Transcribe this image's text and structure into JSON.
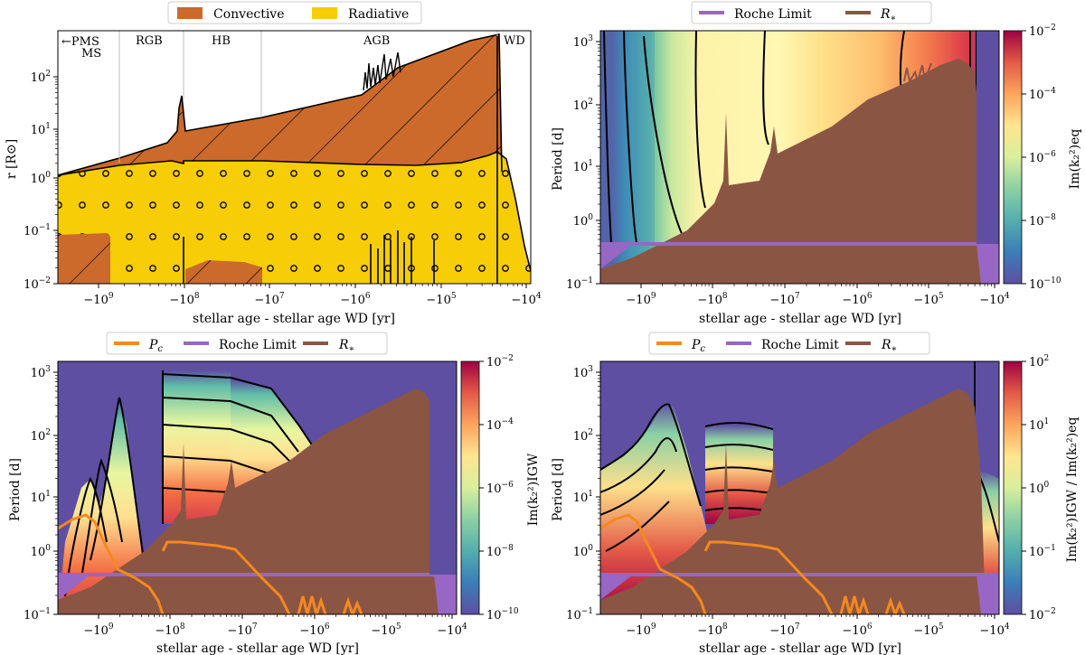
{
  "colors": {
    "convective": "#cc6a2c",
    "radiative": "#f6cd06",
    "roche": "#9866c4",
    "rstar": "#8b5544",
    "pc": "#f4891e",
    "background_low": "#5e4fa2"
  },
  "chart_data": [
    {
      "id": "panel-structure",
      "type": "area",
      "title": "",
      "xlabel": "stellar age - stellar age WD [yr]",
      "ylabel": "r [R⊙]",
      "xscale": "symlog-negative",
      "yscale": "log",
      "xticks": [
        "−10⁹",
        "−10⁸",
        "−10⁷",
        "−10⁶",
        "−10⁵",
        "−10⁴"
      ],
      "yticks": [
        "10⁻²",
        "10⁻¹",
        "10⁰",
        "10¹",
        "10²"
      ],
      "ylim": [
        0.01,
        800
      ],
      "legend": {
        "placement": "top",
        "entries": [
          "Convective",
          "Radiative"
        ]
      },
      "phase_labels": [
        "←PMS",
        "MS",
        "RGB",
        "HB",
        "AGB",
        "WD"
      ],
      "series": [
        {
          "name": "Convective",
          "hatch": "\\",
          "outer_radius": [
            [
              -3500000000.0,
              1.3
            ],
            [
              -1200000000.0,
              2.2
            ],
            [
              -100000000.0,
              2.5
            ],
            [
              -90000000.0,
              11
            ],
            [
              -1000000.0,
              60
            ],
            [
              -200000.0,
              300
            ],
            [
              -20000.0,
              450
            ],
            [
              -15000.0,
              0.5
            ]
          ]
        },
        {
          "name": "Radiative",
          "hatch": "o",
          "outer_radius": [
            [
              -3500000000.0,
              1.3
            ],
            [
              -1200000000.0,
              1.5
            ],
            [
              -100000000.0,
              1.2
            ],
            [
              -90000000.0,
              2.2
            ],
            [
              -1000000.0,
              2.6
            ],
            [
              -20000.0,
              3.3
            ],
            [
              -10000.0,
              0.01
            ]
          ]
        }
      ]
    },
    {
      "id": "panel-eq",
      "type": "heatmap",
      "xlabel": "stellar age - stellar age WD [yr]",
      "ylabel": "Period [d]",
      "xscale": "symlog-negative",
      "yscale": "log",
      "ylim": [
        0.1,
        1500
      ],
      "xticks": [
        "−10⁹",
        "−10⁸",
        "−10⁷",
        "−10⁶",
        "−10⁵",
        "−10⁴"
      ],
      "yticks": [
        "10⁻¹",
        "10⁰",
        "10¹",
        "10²",
        "10³"
      ],
      "colorbar": {
        "label": "Im(k₂²)eq",
        "scale": "log",
        "range": [
          1e-10,
          0.01
        ],
        "ticks": [
          "10⁻¹⁰",
          "10⁻⁸",
          "10⁻⁶",
          "10⁻⁴",
          "10⁻²"
        ],
        "colormap": "Spectral_r"
      },
      "legend": {
        "placement": "top",
        "entries": [
          "Roche Limit",
          "R∗"
        ]
      },
      "series": [
        {
          "name": "Roche Limit",
          "value": 0.5
        },
        {
          "name": "R∗",
          "values": [
            [
              -3500000000.0,
              0.18
            ],
            [
              -1000000000.0,
              0.5
            ],
            [
              -100000000.0,
              1.2
            ],
            [
              -90000000.0,
              12
            ],
            [
              -1000000.0,
              60
            ],
            [
              -200000.0,
              300
            ],
            [
              -20000.0,
              450
            ],
            [
              -15000.0,
              0.1
            ]
          ]
        }
      ]
    },
    {
      "id": "panel-igw",
      "type": "heatmap",
      "xlabel": "stellar age - stellar age WD [yr]",
      "ylabel": "Period [d]",
      "xscale": "symlog-negative",
      "yscale": "log",
      "ylim": [
        0.1,
        1500
      ],
      "xticks": [
        "−10⁹",
        "−10⁸",
        "−10⁷",
        "−10⁶",
        "−10⁵",
        "−10⁴"
      ],
      "yticks": [
        "10⁻¹",
        "10⁰",
        "10¹",
        "10²",
        "10³"
      ],
      "colorbar": {
        "label": "Im(k₂²)IGW",
        "scale": "log",
        "range": [
          1e-10,
          0.01
        ],
        "ticks": [
          "10⁻¹⁰",
          "10⁻⁸",
          "10⁻⁶",
          "10⁻⁴",
          "10⁻²"
        ],
        "colormap": "Spectral_r"
      },
      "legend": {
        "placement": "top",
        "entries": [
          "Pc",
          "Roche Limit",
          "R∗"
        ]
      },
      "series": [
        {
          "name": "Pc",
          "values": [
            [
              -3500000000.0,
              5
            ],
            [
              -1000000000.0,
              8
            ],
            [
              -600000000.0,
              2
            ],
            [
              -150000000.0,
              0.3
            ],
            [
              -100000000.0,
              1.2
            ],
            [
              -1000000.0,
              0.3
            ],
            [
              -100000.0,
              0.15
            ]
          ]
        },
        {
          "name": "Roche Limit",
          "value": 0.5
        },
        {
          "name": "R∗",
          "values": [
            [
              -3500000000.0,
              0.18
            ],
            [
              -1000000000.0,
              0.5
            ],
            [
              -100000000.0,
              1.2
            ],
            [
              -90000000.0,
              12
            ],
            [
              -1000000.0,
              60
            ],
            [
              -200000.0,
              300
            ],
            [
              -20000.0,
              450
            ],
            [
              -15000.0,
              0.1
            ]
          ]
        }
      ]
    },
    {
      "id": "panel-ratio",
      "type": "heatmap",
      "xlabel": "stellar age - stellar age WD [yr]",
      "ylabel": "Period [d]",
      "xscale": "symlog-negative",
      "yscale": "log",
      "ylim": [
        0.1,
        1500
      ],
      "xticks": [
        "−10⁹",
        "−10⁸",
        "−10⁷",
        "−10⁶",
        "−10⁵",
        "−10⁴"
      ],
      "yticks": [
        "10⁻¹",
        "10⁰",
        "10¹",
        "10²",
        "10³"
      ],
      "colorbar": {
        "label": "Im(k₂²)IGW / Im(k₂²)eq",
        "scale": "log",
        "range": [
          0.01,
          100.0
        ],
        "ticks": [
          "10⁻²",
          "10⁻¹",
          "10⁰",
          "10¹",
          "10²"
        ],
        "colormap": "Spectral_r"
      },
      "legend": {
        "placement": "top",
        "entries": [
          "Pc",
          "Roche Limit",
          "R∗"
        ]
      },
      "series": [
        {
          "name": "Pc",
          "values": [
            [
              -3500000000.0,
              5
            ],
            [
              -1000000000.0,
              8
            ],
            [
              -600000000.0,
              2
            ],
            [
              -150000000.0,
              0.3
            ],
            [
              -100000000.0,
              1.2
            ],
            [
              -1000000.0,
              0.3
            ],
            [
              -100000.0,
              0.15
            ]
          ]
        },
        {
          "name": "Roche Limit",
          "value": 0.5
        },
        {
          "name": "R∗",
          "values": [
            [
              -3500000000.0,
              0.18
            ],
            [
              -1000000000.0,
              0.5
            ],
            [
              -100000000.0,
              1.2
            ],
            [
              -90000000.0,
              12
            ],
            [
              -1000000.0,
              60
            ],
            [
              -200000.0,
              300
            ],
            [
              -20000.0,
              450
            ],
            [
              -15000.0,
              0.1
            ]
          ]
        }
      ]
    }
  ],
  "text": {
    "leg_tl_conv": "Convective",
    "leg_tl_rad": "Radiative",
    "leg_roche": "Roche Limit",
    "leg_rstar_R": "R",
    "leg_rstar_sub": "∗",
    "leg_pc_P": "P",
    "leg_pc_sub": "c",
    "phase_pms": "←PMS",
    "phase_ms": "MS",
    "phase_rgb": "RGB",
    "phase_hb": "HB",
    "phase_agb": "AGB",
    "phase_wd": "WD",
    "xlabel": "stellar age - stellar age WD [yr]",
    "ylabel_r": "r [R",
    "ylabel_r_end": "]",
    "ylabel_period": "Period [d]",
    "cb_eq": "Im(k₂²)eq",
    "cb_igw": "Im(k₂²)IGW",
    "cb_ratio": "Im(k₂²)IGW / Im(k₂²)eq",
    "xt": [
      "−10",
      "−10",
      "−10",
      "−10",
      "−10",
      "−10"
    ],
    "xt_exp": [
      "9",
      "8",
      "7",
      "6",
      "5",
      "4"
    ],
    "yt_r_exp": [
      "−2",
      "−1",
      "0",
      "1",
      "2"
    ],
    "yt_p_exp": [
      "−1",
      "0",
      "1",
      "2",
      "3"
    ],
    "cb_eq_exp": [
      "−10",
      "−8",
      "−6",
      "−4",
      "−2"
    ],
    "cb_ratio_exp": [
      "−2",
      "−1",
      "0",
      "1",
      "2"
    ]
  }
}
